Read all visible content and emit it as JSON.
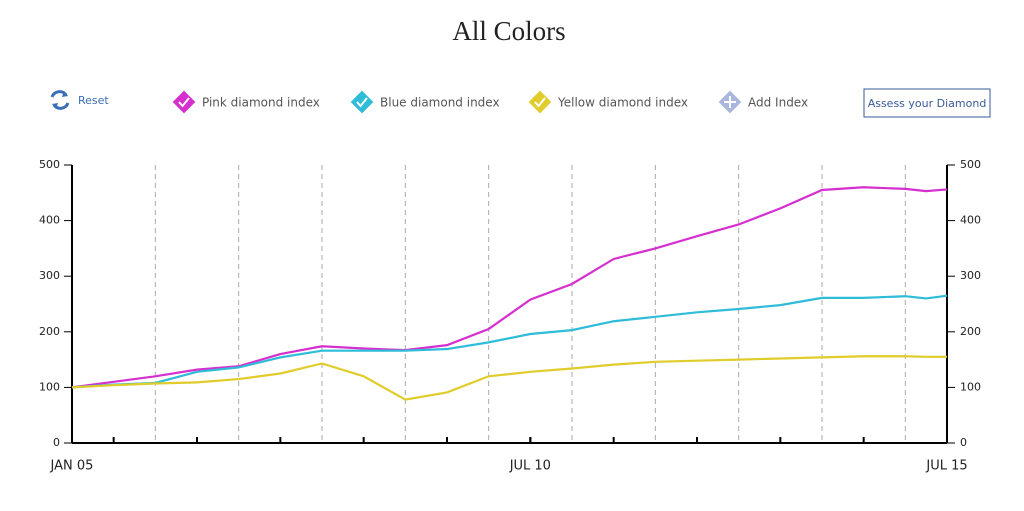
{
  "chart_data": {
    "type": "line",
    "title": "All Colors",
    "x": [
      2005,
      2005.5,
      2006,
      2006.5,
      2007,
      2007.5,
      2008,
      2008.5,
      2009,
      2009.5,
      2010,
      2010.5,
      2011,
      2011.5,
      2012,
      2012.5,
      2013,
      2013.5,
      2014,
      2014.5,
      2015,
      2015.25,
      2015.5
    ],
    "series": [
      {
        "name": "Pink diamond index",
        "color": "#d62fcf",
        "values": [
          100,
          110,
          120,
          132,
          138,
          160,
          174,
          170,
          167,
          176,
          205,
          258,
          286,
          331,
          350,
          372,
          393,
          422,
          455,
          460,
          457,
          453,
          456
        ]
      },
      {
        "name": "Blue diamond index",
        "color": "#2fbcd8",
        "values": [
          100,
          105,
          108,
          128,
          136,
          154,
          166,
          166,
          166,
          169,
          181,
          196,
          203,
          219,
          227,
          235,
          241,
          248,
          261,
          261,
          264,
          260,
          265
        ]
      },
      {
        "name": "Yellow diamond index",
        "color": "#e0cc2a",
        "values": [
          100,
          104,
          107,
          109,
          115,
          125,
          143,
          120,
          78,
          91,
          120,
          128,
          134,
          141,
          146,
          148,
          150,
          152,
          154,
          156,
          156,
          155,
          155
        ]
      }
    ],
    "xlim": [
      2005,
      2015.5
    ],
    "xticks": [
      {
        "value": 2005,
        "label": "JAN 05"
      },
      {
        "value": 2010.5,
        "label": "JUL 10"
      },
      {
        "value": 2015.5,
        "label": "JUL 15"
      }
    ],
    "x_minor_ticks": [
      2005.5,
      2006.5,
      2007.5,
      2008.5,
      2009.5,
      2010.5,
      2011.5,
      2012.5,
      2013.5,
      2014.5
    ],
    "x_grid": [
      2006,
      2007,
      2008,
      2009,
      2010,
      2011,
      2012,
      2013,
      2014,
      2015
    ],
    "ylim": [
      0,
      500
    ],
    "yticks": [
      0,
      100,
      200,
      300,
      400,
      500
    ],
    "y2lim": [
      0,
      500
    ],
    "y2ticks": [
      0,
      100,
      200,
      300,
      400,
      500
    ]
  },
  "controls": {
    "reset": "Reset",
    "add_index": "Add Index",
    "assess": "Assess your Diamond"
  }
}
